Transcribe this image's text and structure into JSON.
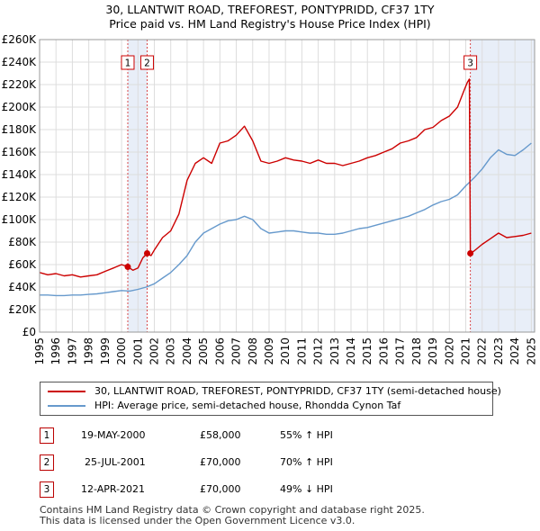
{
  "title_line1": "30, LLANTWIT ROAD, TREFOREST, PONTYPRIDD, CF37 1TY",
  "title_line2": "Price paid vs. HM Land Registry's House Price Index (HPI)",
  "colors": {
    "property": "#cc0000",
    "hpi": "#6699cc",
    "shade": "#e8eef8",
    "grid": "#dddddd"
  },
  "chart_data": {
    "type": "line",
    "title": "30, LLANTWIT ROAD, TREFOREST, PONTYPRIDD, CF37 1TY — Price paid vs. HM Land Registry's House Price Index (HPI)",
    "xlim": [
      1995,
      2025.2
    ],
    "ylim": [
      0,
      260000
    ],
    "y_ticks": [
      0,
      20000,
      40000,
      60000,
      80000,
      100000,
      120000,
      140000,
      160000,
      180000,
      200000,
      220000,
      240000,
      260000
    ],
    "y_tick_labels": [
      "£0",
      "£20K",
      "£40K",
      "£60K",
      "£80K",
      "£100K",
      "£120K",
      "£140K",
      "£160K",
      "£180K",
      "£200K",
      "£220K",
      "£240K",
      "£260K"
    ],
    "x_ticks": [
      1995,
      1996,
      1997,
      1998,
      1999,
      2000,
      2001,
      2002,
      2003,
      2004,
      2005,
      2006,
      2007,
      2008,
      2009,
      2010,
      2011,
      2012,
      2013,
      2014,
      2015,
      2016,
      2017,
      2018,
      2019,
      2020,
      2021,
      2022,
      2023,
      2024,
      2025
    ],
    "x_tick_labels": [
      "1995",
      "1996",
      "1997",
      "1998",
      "1999",
      "2000",
      "2001",
      "2002",
      "2003",
      "2004",
      "2005",
      "2006",
      "2007",
      "2008",
      "2009",
      "2010",
      "2011",
      "2012",
      "2013",
      "2014",
      "2015",
      "2016",
      "2017",
      "2018",
      "2019",
      "2020",
      "2021",
      "2022",
      "2023",
      "2024",
      "2025"
    ],
    "grid": true,
    "shaded_periods": [
      [
        2000.38,
        2001.56
      ],
      [
        2021.28,
        2025.2
      ]
    ],
    "series": [
      {
        "name": "30, LLANTWIT ROAD, TREFOREST, PONTYPRIDD, CF37 1TY (semi-detached house)",
        "x": [
          1995,
          1995.5,
          1996,
          1996.5,
          1997,
          1997.5,
          1998,
          1998.5,
          1999,
          1999.5,
          2000,
          2000.38,
          2000.7,
          2001,
          2001.3,
          2001.56,
          2001.8,
          2002,
          2002.5,
          2003,
          2003.5,
          2004,
          2004.5,
          2005,
          2005.5,
          2006,
          2006.5,
          2007,
          2007.5,
          2008,
          2008.5,
          2009,
          2009.5,
          2010,
          2010.5,
          2011,
          2011.5,
          2012,
          2012.5,
          2013,
          2013.5,
          2014,
          2014.5,
          2015,
          2015.5,
          2016,
          2016.5,
          2017,
          2017.5,
          2018,
          2018.5,
          2019,
          2019.5,
          2020,
          2020.5,
          2020.9,
          2021.1,
          2021.22,
          2021.28,
          2021.5,
          2022,
          2022.5,
          2023,
          2023.5,
          2024,
          2024.5,
          2025
        ],
        "y": [
          53000,
          51000,
          52000,
          50000,
          51000,
          49000,
          50000,
          51000,
          54000,
          57000,
          60000,
          58000,
          55000,
          57000,
          66000,
          70000,
          68000,
          73000,
          84000,
          90000,
          105000,
          135000,
          150000,
          155000,
          150000,
          168000,
          170000,
          175000,
          183000,
          170000,
          152000,
          150000,
          152000,
          155000,
          153000,
          152000,
          150000,
          153000,
          150000,
          150000,
          148000,
          150000,
          152000,
          155000,
          157000,
          160000,
          163000,
          168000,
          170000,
          173000,
          180000,
          182000,
          188000,
          192000,
          200000,
          215000,
          222000,
          225000,
          70000,
          72000,
          78000,
          83000,
          88000,
          84000,
          85000,
          86000,
          88000
        ]
      },
      {
        "name": "HPI: Average price, semi-detached house, Rhondda Cynon Taf",
        "x": [
          1995,
          1995.5,
          1996,
          1996.5,
          1997,
          1997.5,
          1998,
          1998.5,
          1999,
          1999.5,
          2000,
          2000.5,
          2001,
          2001.5,
          2002,
          2002.5,
          2003,
          2003.5,
          2004,
          2004.5,
          2005,
          2005.5,
          2006,
          2006.5,
          2007,
          2007.5,
          2008,
          2008.5,
          2009,
          2009.5,
          2010,
          2010.5,
          2011,
          2011.5,
          2012,
          2012.5,
          2013,
          2013.5,
          2014,
          2014.5,
          2015,
          2015.5,
          2016,
          2016.5,
          2017,
          2017.5,
          2018,
          2018.5,
          2019,
          2019.5,
          2020,
          2020.5,
          2021,
          2021.5,
          2022,
          2022.5,
          2023,
          2023.5,
          2024,
          2024.5,
          2025
        ],
        "y": [
          33000,
          33000,
          32500,
          32500,
          33000,
          33000,
          33500,
          34000,
          35000,
          36000,
          37000,
          36500,
          38000,
          40000,
          43000,
          48000,
          53000,
          60000,
          68000,
          80000,
          88000,
          92000,
          96000,
          99000,
          100000,
          103000,
          100000,
          92000,
          88000,
          89000,
          90000,
          90000,
          89000,
          88000,
          88000,
          87000,
          87000,
          88000,
          90000,
          92000,
          93000,
          95000,
          97000,
          99000,
          101000,
          103000,
          106000,
          109000,
          113000,
          116000,
          118000,
          122000,
          130000,
          137000,
          145000,
          155000,
          162000,
          158000,
          157000,
          162000,
          168000
        ]
      }
    ],
    "sales": [
      {
        "label": "1",
        "x": 2000.38,
        "y": 58000
      },
      {
        "label": "2",
        "x": 2001.56,
        "y": 70000
      },
      {
        "label": "3",
        "x": 2021.28,
        "y": 70000
      }
    ]
  },
  "legend": {
    "property_label": "30, LLANTWIT ROAD, TREFOREST, PONTYPRIDD, CF37 1TY (semi-detached house)",
    "hpi_label": "HPI: Average price, semi-detached house, Rhondda Cynon Taf"
  },
  "sales_table": [
    {
      "num": "1",
      "date": "19-MAY-2000",
      "price": "£58,000",
      "hpi": "55% ↑ HPI"
    },
    {
      "num": "2",
      "date": "25-JUL-2001",
      "price": "£70,000",
      "hpi": "70% ↑ HPI"
    },
    {
      "num": "3",
      "date": "12-APR-2021",
      "price": "£70,000",
      "hpi": "49% ↓ HPI"
    }
  ],
  "footer_line1": "Contains HM Land Registry data © Crown copyright and database right 2025.",
  "footer_line2": "This data is licensed under the Open Government Licence v3.0."
}
